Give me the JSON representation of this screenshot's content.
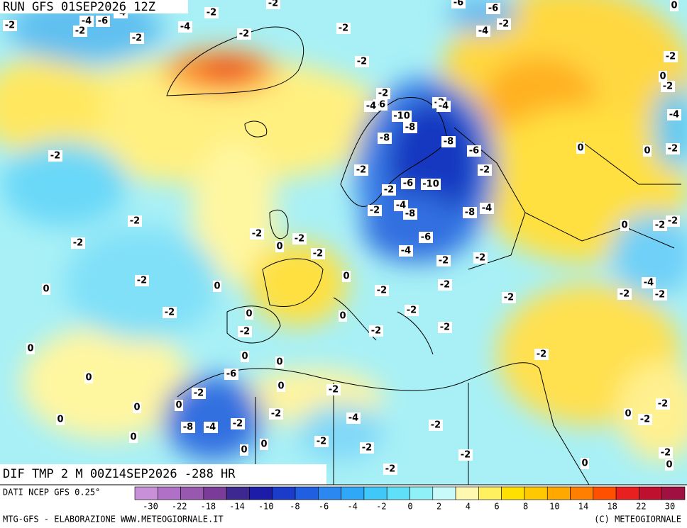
{
  "header": {
    "run": "RUN GFS 01SEP2026 12Z"
  },
  "map": {
    "title": "DIF TMP 2 M 00Z14SEP2026 -288 HR",
    "contour_labels": [
      "-4",
      "-6",
      "-4",
      "-2",
      "-2",
      "-2",
      "-2",
      "-2",
      "-4",
      "-2",
      "-6",
      "-6",
      "-4",
      "-2",
      "0",
      "-2",
      "-2",
      "-2",
      "0",
      "-2",
      "-4",
      "-2",
      "-6",
      "-4",
      "-2",
      "-4",
      "-10",
      "-8",
      "-8",
      "-8",
      "-6",
      "0",
      "0",
      "-2",
      "-2",
      "-2",
      "-2",
      "-6",
      "-10",
      "-2",
      "-4",
      "-8",
      "-2",
      "-8",
      "-4",
      "0",
      "-2",
      "-2",
      "-2",
      "-2",
      "-2",
      "-2",
      "0",
      "-2",
      "-6",
      "-4",
      "-2",
      "-2",
      "0",
      "-2",
      "0",
      "0",
      "-2",
      "-2",
      "-2",
      "-2",
      "-4",
      "-2",
      "-2",
      "0",
      "0",
      "-2",
      "-2",
      "-2",
      "-2",
      "0",
      "0",
      "0",
      "-2",
      "0",
      "-6",
      "0",
      "-2",
      "-2",
      "0",
      "0",
      "-2",
      "0",
      "-2",
      "-4",
      "-2",
      "0",
      "-8",
      "-4",
      "-2",
      "-2",
      "0",
      "0",
      "-2",
      "0",
      "-2",
      "-2",
      "-2",
      "0",
      "0",
      "-2"
    ]
  },
  "footer": {
    "source": "DATI NCEP GFS 0.25°",
    "credit": "MTG-GFS - ELABORAZIONE WWW.METEOGIORNALE.IT",
    "copyright": "(C) METEOGIORNALE"
  },
  "colorbar": {
    "labels": [
      -30,
      -22,
      -18,
      -14,
      -10,
      -8,
      -6,
      -4,
      -2,
      0,
      2,
      4,
      6,
      8,
      10,
      14,
      18,
      22,
      30
    ],
    "colors": [
      "#c890d8",
      "#b070c8",
      "#9858b0",
      "#7a3c98",
      "#3c2890",
      "#1c1ca8",
      "#1a3cc8",
      "#2060e0",
      "#2a88f0",
      "#30a8f8",
      "#40c8f8",
      "#60e0f8",
      "#90f0f8",
      "#c8fafa",
      "#fff8b0",
      "#fff060",
      "#ffe000",
      "#ffc800",
      "#ffa800",
      "#ff8000",
      "#ff5000",
      "#e82020",
      "#c01030",
      "#a01040"
    ]
  }
}
